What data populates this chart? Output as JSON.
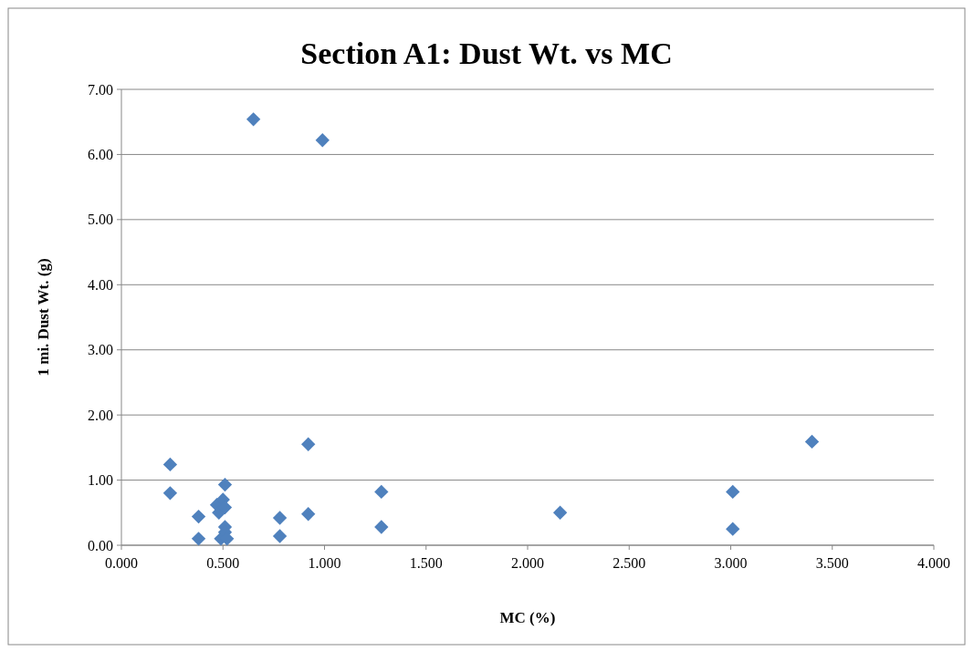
{
  "chart_data": {
    "type": "scatter",
    "title": "Section A1: Dust Wt. vs MC",
    "xlabel": "MC (%)",
    "ylabel": "1 mi. Dust Wt. (g)",
    "series": [
      {
        "color": "#4f81bd",
        "x": [
          0.24,
          0.24,
          0.38,
          0.38,
          0.47,
          0.48,
          0.49,
          0.5,
          0.51,
          0.51,
          0.51,
          0.51,
          0.52,
          0.78,
          0.78,
          0.92,
          0.92,
          0.65,
          0.99,
          1.28,
          1.28,
          2.16,
          3.01,
          3.01,
          3.4
        ],
        "values": [
          1.24,
          0.8,
          0.44,
          0.1,
          0.62,
          0.5,
          0.1,
          0.7,
          0.93,
          0.58,
          0.28,
          0.2,
          0.1,
          0.42,
          0.14,
          1.55,
          0.48,
          6.54,
          6.22,
          0.82,
          0.28,
          0.5,
          0.82,
          0.25,
          1.59
        ]
      }
    ],
    "xlim": [
      0,
      4
    ],
    "xticks": [
      {
        "value": 0,
        "label": "0.000"
      },
      {
        "value": 0.5,
        "label": "0.500"
      },
      {
        "value": 1,
        "label": "1.000"
      },
      {
        "value": 1.5,
        "label": "1.500"
      },
      {
        "value": 2,
        "label": "2.000"
      },
      {
        "value": 2.5,
        "label": "2.500"
      },
      {
        "value": 3,
        "label": "3.000"
      },
      {
        "value": 3.5,
        "label": "3.500"
      },
      {
        "value": 4,
        "label": "4.000"
      }
    ],
    "ylim": [
      0,
      7
    ],
    "yticks": [
      {
        "value": 0,
        "label": "0.00"
      },
      {
        "value": 1,
        "label": "1.00"
      },
      {
        "value": 2,
        "label": "2.00"
      },
      {
        "value": 3,
        "label": "3.00"
      },
      {
        "value": 4,
        "label": "4.00"
      },
      {
        "value": 5,
        "label": "5.00"
      },
      {
        "value": 6,
        "label": "6.00"
      },
      {
        "value": 7,
        "label": "7.00"
      }
    ],
    "grid": "y",
    "marker": "diamond"
  }
}
